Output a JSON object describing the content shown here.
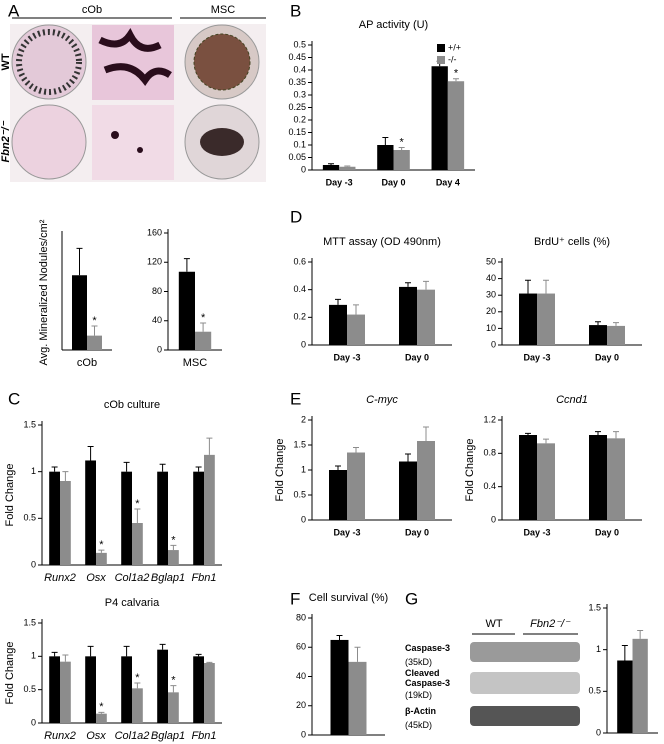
{
  "panels": [
    "A",
    "B",
    "C",
    "D",
    "E",
    "F",
    "G"
  ],
  "photos": {
    "columns": [
      "cOb",
      "MSC"
    ],
    "rows": [
      "WT",
      "Fbn2⁻/⁻"
    ]
  },
  "blot": {
    "groups": [
      "WT",
      "Fbn2⁻/⁻"
    ],
    "rows": [
      {
        "name": "Caspase-3",
        "size": "(35kD)"
      },
      {
        "name": "Cleaved Caspase-3",
        "size": "(19kD)"
      },
      {
        "name": "β-Actin",
        "size": "(45kD)"
      }
    ]
  },
  "chart_data": [
    {
      "type": "bar",
      "ylabel": "Avg. Mineralized Nodules/cm²",
      "categories": [
        "cOb"
      ],
      "ylim": [
        0,
        600
      ],
      "series": [
        {
          "color": "#000000",
          "values": [
            390
          ],
          "errors": [
            140
          ],
          "significance": [
            null
          ]
        },
        {
          "color": "#8c8c8c",
          "values": [
            75
          ],
          "errors": [
            50
          ],
          "significance": [
            "*"
          ]
        }
      ]
    },
    {
      "type": "bar",
      "categories": [
        "MSC"
      ],
      "ylim": [
        0,
        160
      ],
      "yticks": [
        0,
        40,
        80,
        120,
        160
      ],
      "series": [
        {
          "color": "#000000",
          "values": [
            107
          ],
          "errors": [
            18
          ],
          "significance": [
            null
          ]
        },
        {
          "color": "#8c8c8c",
          "values": [
            25
          ],
          "errors": [
            12
          ],
          "significance": [
            "*"
          ]
        }
      ]
    },
    {
      "type": "bar",
      "title": "AP activity (U)",
      "categories": [
        "Day -3",
        "Day 0",
        "Day 4"
      ],
      "ylim": [
        0,
        0.5
      ],
      "yticks": [
        0,
        0.05,
        0.1,
        0.15,
        0.2,
        0.25,
        0.3,
        0.35,
        0.4,
        0.45,
        0.5
      ],
      "legend": "top-right",
      "series": [
        {
          "name": "+/+",
          "color": "#000000",
          "values": [
            0.02,
            0.1,
            0.415
          ],
          "errors": [
            0.005,
            0.03,
            0.02
          ],
          "significance": [
            null,
            null,
            null
          ]
        },
        {
          "name": "-/-",
          "color": "#8c8c8c",
          "values": [
            0.013,
            0.08,
            0.355
          ],
          "errors": [
            0.003,
            0.01,
            0.01
          ],
          "significance": [
            null,
            "*",
            "*"
          ]
        }
      ]
    },
    {
      "type": "bar",
      "title": "MTT assay (OD 490nm)",
      "categories": [
        "Day -3",
        "Day 0"
      ],
      "ylim": [
        0,
        0.6
      ],
      "yticks": [
        0,
        0.2,
        0.4,
        0.6
      ],
      "series": [
        {
          "color": "#000000",
          "values": [
            0.29,
            0.42
          ],
          "errors": [
            0.04,
            0.03
          ]
        },
        {
          "color": "#8c8c8c",
          "values": [
            0.22,
            0.4
          ],
          "errors": [
            0.07,
            0.06
          ]
        }
      ]
    },
    {
      "type": "bar",
      "title": "BrdU⁺ cells (%)",
      "categories": [
        "Day -3",
        "Day 0"
      ],
      "ylim": [
        0,
        50
      ],
      "yticks": [
        0,
        10,
        20,
        30,
        40,
        50
      ],
      "series": [
        {
          "color": "#000000",
          "values": [
            31,
            12
          ],
          "errors": [
            8,
            2
          ]
        },
        {
          "color": "#8c8c8c",
          "values": [
            31,
            11.5
          ],
          "errors": [
            8,
            2
          ]
        }
      ]
    },
    {
      "type": "bar",
      "title": "cOb culture",
      "ylabel": "Fold Change",
      "categories": [
        "Runx2",
        "Osx",
        "Col1a2",
        "Bglap1",
        "Fbn1"
      ],
      "italic_categories": true,
      "ylim": [
        0,
        1.5
      ],
      "yticks": [
        0,
        0.5,
        1,
        1.5
      ],
      "series": [
        {
          "color": "#000000",
          "values": [
            1.0,
            1.12,
            1.0,
            1.0,
            1.0
          ],
          "errors": [
            0.05,
            0.15,
            0.1,
            0.08,
            0.05
          ],
          "significance": [
            null,
            null,
            null,
            null,
            null
          ]
        },
        {
          "color": "#8c8c8c",
          "values": [
            0.9,
            0.13,
            0.45,
            0.16,
            1.18
          ],
          "errors": [
            0.1,
            0.03,
            0.15,
            0.05,
            0.18
          ],
          "significance": [
            null,
            "*",
            "*",
            "*",
            null
          ]
        }
      ]
    },
    {
      "type": "bar",
      "title": "P4 calvaria",
      "ylabel": "Fold Change",
      "categories": [
        "Runx2",
        "Osx",
        "Col1a2",
        "Bglap1",
        "Fbn1"
      ],
      "italic_categories": true,
      "ylim": [
        0,
        1.5
      ],
      "yticks": [
        0,
        0.5,
        1,
        1.5
      ],
      "series": [
        {
          "color": "#000000",
          "values": [
            1.0,
            1.0,
            1.0,
            1.1,
            1.0
          ],
          "errors": [
            0.06,
            0.15,
            0.15,
            0.08,
            0.03
          ],
          "significance": [
            null,
            null,
            null,
            null,
            null
          ]
        },
        {
          "color": "#8c8c8c",
          "values": [
            0.92,
            0.14,
            0.52,
            0.46,
            0.9
          ],
          "errors": [
            0.1,
            0.02,
            0.08,
            0.1,
            0.01
          ],
          "significance": [
            null,
            "*",
            "*",
            "*",
            null
          ]
        }
      ]
    },
    {
      "type": "bar",
      "title": "C-myc",
      "italic_title": true,
      "ylabel": "Fold Change",
      "categories": [
        "Day -3",
        "Day 0"
      ],
      "ylim": [
        0,
        2
      ],
      "yticks": [
        0,
        0.5,
        1,
        1.5,
        2
      ],
      "series": [
        {
          "color": "#000000",
          "values": [
            1.0,
            1.17
          ],
          "errors": [
            0.08,
            0.15
          ]
        },
        {
          "color": "#8c8c8c",
          "values": [
            1.35,
            1.58
          ],
          "errors": [
            0.1,
            0.28
          ]
        }
      ]
    },
    {
      "type": "bar",
      "title": "Ccnd1",
      "italic_title": true,
      "ylabel": "Fold Change",
      "categories": [
        "Day -3",
        "Day 0"
      ],
      "ylim": [
        0,
        1.2
      ],
      "yticks": [
        0,
        0.4,
        0.8,
        1.2
      ],
      "series": [
        {
          "color": "#000000",
          "values": [
            1.02,
            1.02
          ],
          "errors": [
            0.02,
            0.04
          ]
        },
        {
          "color": "#8c8c8c",
          "values": [
            0.92,
            0.98
          ],
          "errors": [
            0.05,
            0.08
          ]
        }
      ]
    },
    {
      "type": "bar",
      "title": "Cell survival (%)",
      "categories": [
        null
      ],
      "ylim": [
        0,
        80
      ],
      "yticks": [
        0,
        20,
        40,
        60,
        80
      ],
      "series": [
        {
          "color": "#000000",
          "values": [
            65
          ],
          "errors": [
            3
          ]
        },
        {
          "color": "#8c8c8c",
          "values": [
            50
          ],
          "errors": [
            10
          ]
        }
      ]
    },
    {
      "type": "bar",
      "categories": [
        null
      ],
      "ylim": [
        0,
        1.5
      ],
      "yticks": [
        0,
        0.5,
        1,
        1.5
      ],
      "series": [
        {
          "color": "#000000",
          "values": [
            0.87
          ],
          "errors": [
            0.18
          ]
        },
        {
          "color": "#8c8c8c",
          "values": [
            1.13
          ],
          "errors": [
            0.1
          ]
        }
      ]
    }
  ]
}
